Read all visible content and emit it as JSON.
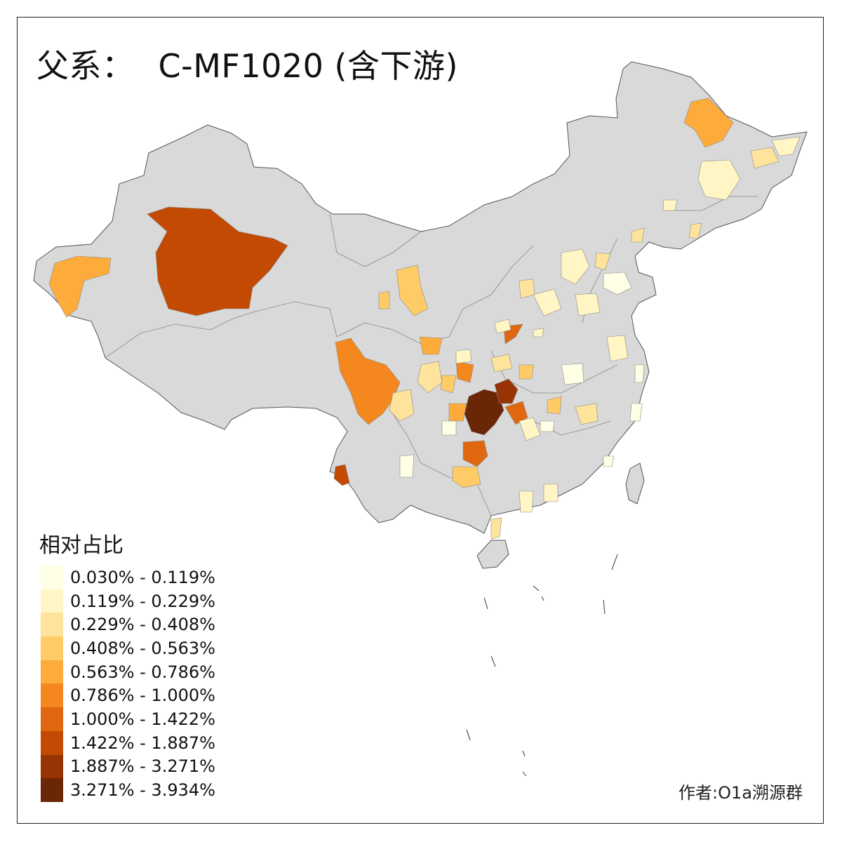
{
  "title": {
    "prefix": "父系：",
    "code": "C-MF1020 (含下游)"
  },
  "legend": {
    "title": "相对占比",
    "bins": [
      {
        "label": "0.030% - 0.119%",
        "color": "#FFFFE5"
      },
      {
        "label": "0.119% - 0.229%",
        "color": "#FFF5C5"
      },
      {
        "label": "0.229% - 0.408%",
        "color": "#FEE39C"
      },
      {
        "label": "0.408% - 0.563%",
        "color": "#FECB66"
      },
      {
        "label": "0.563% - 0.786%",
        "color": "#FDAC3C"
      },
      {
        "label": "0.786% - 1.000%",
        "color": "#F4881F"
      },
      {
        "label": "1.000% - 1.422%",
        "color": "#E0670F"
      },
      {
        "label": "1.422% - 1.887%",
        "color": "#C24A03"
      },
      {
        "label": "1.887% - 3.271%",
        "color": "#973304"
      },
      {
        "label": "3.271% - 3.934%",
        "color": "#6A2605"
      }
    ]
  },
  "map": {
    "base_color": "#D9D9D9",
    "border_color": "#555555"
  },
  "author": "作者:O1a溯源群"
}
